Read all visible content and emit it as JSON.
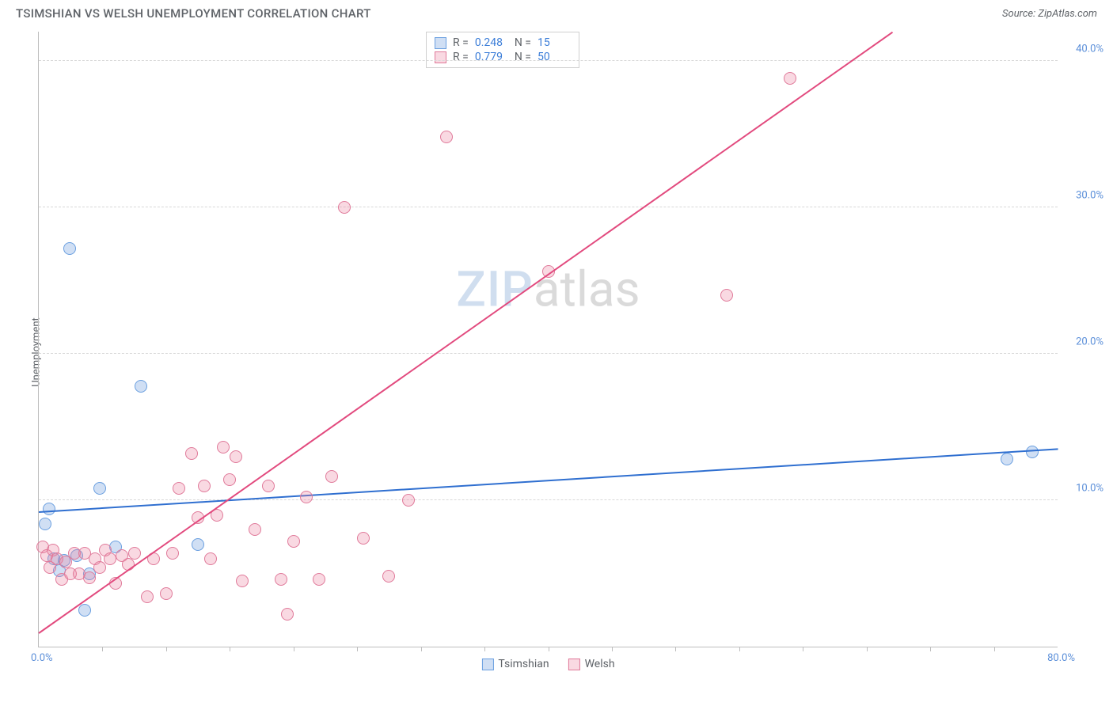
{
  "header": {
    "title": "TSIMSHIAN VS WELSH UNEMPLOYMENT CORRELATION CHART",
    "source": "Source: ZipAtlas.com"
  },
  "ylabel": "Unemployment",
  "watermark": {
    "part1": "ZIP",
    "part2": "atlas"
  },
  "chart": {
    "type": "scatter",
    "xlim": [
      0,
      80
    ],
    "ylim": [
      0,
      42
    ],
    "x_origin_label": "0.0%",
    "x_max_label": "80.0%",
    "y_ticks": [
      {
        "v": 10,
        "label": "10.0%"
      },
      {
        "v": 20,
        "label": "20.0%"
      },
      {
        "v": 30,
        "label": "30.0%"
      },
      {
        "v": 40,
        "label": "40.0%"
      }
    ],
    "x_minor_ticks": [
      5,
      10,
      15,
      20,
      25,
      30,
      35,
      40,
      45,
      50,
      55,
      60,
      65,
      70,
      75
    ],
    "background_color": "#ffffff",
    "grid_color": "#d8d8d8",
    "axis_color": "#bdbdbd",
    "marker_radius": 8,
    "marker_stroke_width": 1.2,
    "trend_line_width": 2,
    "series": [
      {
        "name": "Tsimshian",
        "fill": "rgba(120,164,224,0.35)",
        "stroke": "#6a9fe0",
        "trend_color": "#2f6fd0",
        "r": "0.248",
        "n": "15",
        "trend": {
          "x1": 0,
          "y1": 9.3,
          "x2": 80,
          "y2": 13.6
        },
        "points": [
          {
            "x": 0.5,
            "y": 8.4
          },
          {
            "x": 0.8,
            "y": 9.4
          },
          {
            "x": 1.2,
            "y": 6.0
          },
          {
            "x": 1.6,
            "y": 5.2
          },
          {
            "x": 2.0,
            "y": 5.9
          },
          {
            "x": 2.4,
            "y": 27.2
          },
          {
            "x": 3.0,
            "y": 6.2
          },
          {
            "x": 3.6,
            "y": 2.5
          },
          {
            "x": 4.0,
            "y": 5.0
          },
          {
            "x": 4.8,
            "y": 10.8
          },
          {
            "x": 6.0,
            "y": 6.8
          },
          {
            "x": 8.0,
            "y": 17.8
          },
          {
            "x": 12.5,
            "y": 7.0
          },
          {
            "x": 76.0,
            "y": 12.8
          },
          {
            "x": 78.0,
            "y": 13.3
          }
        ]
      },
      {
        "name": "Welsh",
        "fill": "rgba(235,130,160,0.30)",
        "stroke": "#e07a9a",
        "trend_color": "#e24a7e",
        "r": "0.779",
        "n": "50",
        "trend": {
          "x1": 0,
          "y1": 1.0,
          "x2": 67,
          "y2": 42
        },
        "points": [
          {
            "x": 0.3,
            "y": 6.8
          },
          {
            "x": 0.6,
            "y": 6.2
          },
          {
            "x": 0.9,
            "y": 5.4
          },
          {
            "x": 1.1,
            "y": 6.6
          },
          {
            "x": 1.4,
            "y": 6.0
          },
          {
            "x": 1.8,
            "y": 4.6
          },
          {
            "x": 2.1,
            "y": 5.8
          },
          {
            "x": 2.5,
            "y": 5.0
          },
          {
            "x": 2.8,
            "y": 6.4
          },
          {
            "x": 3.2,
            "y": 5.0
          },
          {
            "x": 3.6,
            "y": 6.4
          },
          {
            "x": 4.0,
            "y": 4.7
          },
          {
            "x": 4.4,
            "y": 6.0
          },
          {
            "x": 4.8,
            "y": 5.4
          },
          {
            "x": 5.2,
            "y": 6.6
          },
          {
            "x": 5.6,
            "y": 6.0
          },
          {
            "x": 6.0,
            "y": 4.3
          },
          {
            "x": 6.5,
            "y": 6.2
          },
          {
            "x": 7.0,
            "y": 5.6
          },
          {
            "x": 7.5,
            "y": 6.4
          },
          {
            "x": 8.5,
            "y": 3.4
          },
          {
            "x": 9.0,
            "y": 6.0
          },
          {
            "x": 10.0,
            "y": 3.6
          },
          {
            "x": 10.5,
            "y": 6.4
          },
          {
            "x": 11.0,
            "y": 10.8
          },
          {
            "x": 12.0,
            "y": 13.2
          },
          {
            "x": 12.5,
            "y": 8.8
          },
          {
            "x": 13.0,
            "y": 11.0
          },
          {
            "x": 13.5,
            "y": 6.0
          },
          {
            "x": 14.0,
            "y": 9.0
          },
          {
            "x": 14.5,
            "y": 13.6
          },
          {
            "x": 15.0,
            "y": 11.4
          },
          {
            "x": 15.5,
            "y": 13.0
          },
          {
            "x": 16.0,
            "y": 4.5
          },
          {
            "x": 17.0,
            "y": 8.0
          },
          {
            "x": 18.0,
            "y": 11.0
          },
          {
            "x": 19.0,
            "y": 4.6
          },
          {
            "x": 19.5,
            "y": 2.2
          },
          {
            "x": 20.0,
            "y": 7.2
          },
          {
            "x": 21.0,
            "y": 10.2
          },
          {
            "x": 22.0,
            "y": 4.6
          },
          {
            "x": 23.0,
            "y": 11.6
          },
          {
            "x": 24.0,
            "y": 30.0
          },
          {
            "x": 25.5,
            "y": 7.4
          },
          {
            "x": 27.5,
            "y": 4.8
          },
          {
            "x": 29.0,
            "y": 10.0
          },
          {
            "x": 32.0,
            "y": 34.8
          },
          {
            "x": 40.0,
            "y": 25.6
          },
          {
            "x": 54.0,
            "y": 24.0
          },
          {
            "x": 59.0,
            "y": 38.8
          }
        ]
      }
    ]
  },
  "stats_labels": {
    "r": "R =",
    "n": "N ="
  },
  "legend": [
    {
      "label": "Tsimshian",
      "fill": "rgba(120,164,224,0.35)",
      "stroke": "#6a9fe0"
    },
    {
      "label": "Welsh",
      "fill": "rgba(235,130,160,0.30)",
      "stroke": "#e07a9a"
    }
  ]
}
